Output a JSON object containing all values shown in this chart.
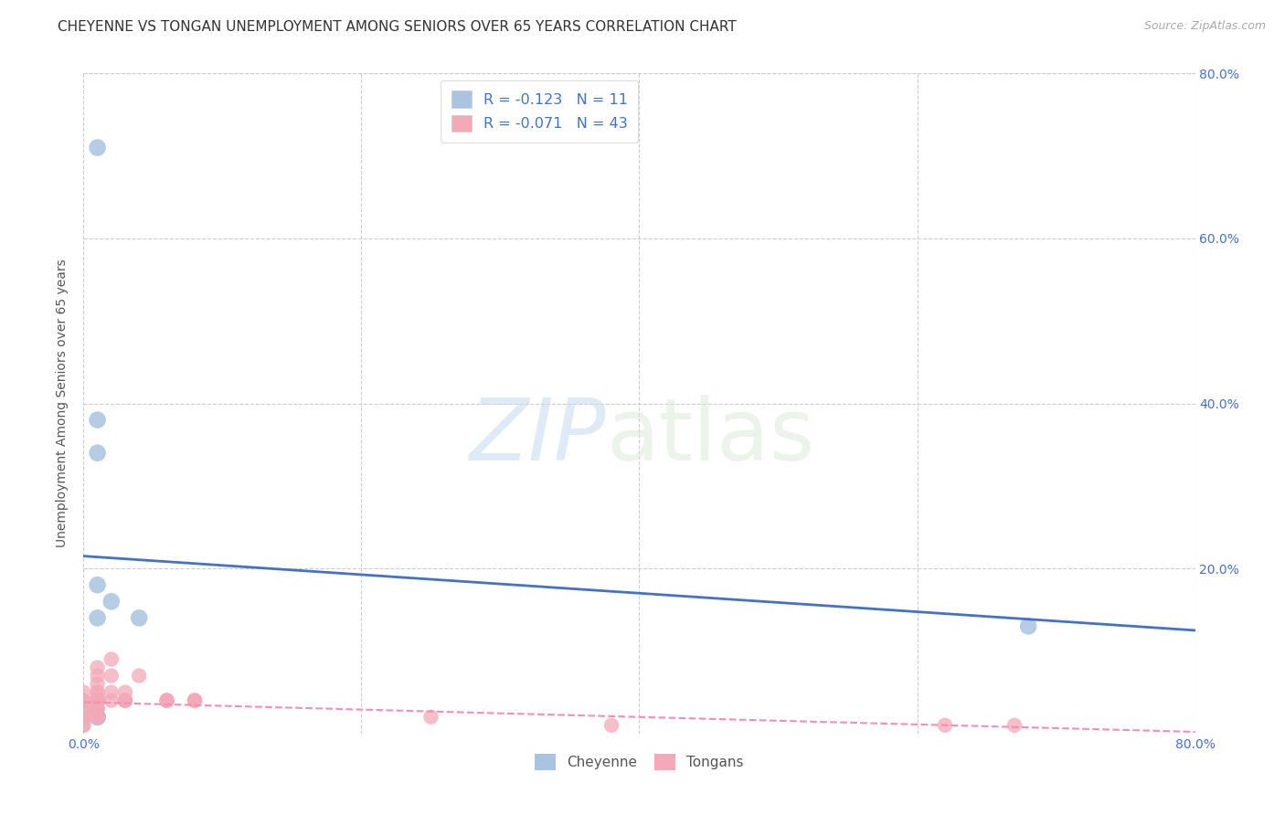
{
  "title": "CHEYENNE VS TONGAN UNEMPLOYMENT AMONG SENIORS OVER 65 YEARS CORRELATION CHART",
  "source": "Source: ZipAtlas.com",
  "ylabel": "Unemployment Among Seniors over 65 years",
  "xlim": [
    0.0,
    0.8
  ],
  "ylim": [
    0.0,
    0.8
  ],
  "xticks": [
    0.0,
    0.2,
    0.4,
    0.6,
    0.8
  ],
  "yticks": [
    0.2,
    0.4,
    0.6,
    0.8
  ],
  "xticklabels": [
    "0.0%",
    "",
    "",
    "",
    "80.0%"
  ],
  "yticklabels_right": [
    "20.0%",
    "40.0%",
    "60.0%",
    "80.0%"
  ],
  "cheyenne_color": "#a8c4e0",
  "tongan_color": "#f4a8b8",
  "cheyenne_line_color": "#4472c4",
  "tongan_line_color": "#f48fb1",
  "cheyenne_R": -0.123,
  "cheyenne_N": 11,
  "tongan_R": -0.071,
  "tongan_N": 43,
  "cheyenne_scatter_x": [
    0.01,
    0.01,
    0.01,
    0.01,
    0.02,
    0.01,
    0.04,
    0.68,
    0.01,
    0.01,
    0.01
  ],
  "cheyenne_scatter_y": [
    0.71,
    0.38,
    0.34,
    0.18,
    0.16,
    0.14,
    0.14,
    0.13,
    0.04,
    0.02,
    0.02
  ],
  "tongan_scatter_x": [
    0.0,
    0.0,
    0.0,
    0.0,
    0.0,
    0.0,
    0.0,
    0.0,
    0.0,
    0.0,
    0.0,
    0.01,
    0.01,
    0.01,
    0.01,
    0.01,
    0.01,
    0.01,
    0.01,
    0.01,
    0.01,
    0.01,
    0.01,
    0.01,
    0.02,
    0.02,
    0.02,
    0.02,
    0.03,
    0.03,
    0.03,
    0.03,
    0.04,
    0.06,
    0.06,
    0.06,
    0.08,
    0.08,
    0.08,
    0.25,
    0.38,
    0.62,
    0.67
  ],
  "tongan_scatter_y": [
    0.05,
    0.04,
    0.04,
    0.03,
    0.03,
    0.03,
    0.02,
    0.02,
    0.02,
    0.01,
    0.01,
    0.08,
    0.07,
    0.06,
    0.05,
    0.05,
    0.04,
    0.04,
    0.04,
    0.03,
    0.03,
    0.03,
    0.02,
    0.02,
    0.09,
    0.07,
    0.05,
    0.04,
    0.05,
    0.04,
    0.04,
    0.04,
    0.07,
    0.04,
    0.04,
    0.04,
    0.04,
    0.04,
    0.04,
    0.02,
    0.01,
    0.01,
    0.01
  ],
  "cheyenne_trend_x": [
    0.0,
    0.8
  ],
  "cheyenne_trend_y": [
    0.215,
    0.125
  ],
  "tongan_trend_x": [
    0.0,
    0.8
  ],
  "tongan_trend_y": [
    0.038,
    0.002
  ],
  "watermark_zip": "ZIP",
  "watermark_atlas": "atlas",
  "background_color": "#ffffff",
  "grid_color": "#cccccc",
  "title_fontsize": 11,
  "label_fontsize": 10,
  "tick_fontsize": 10,
  "legend_label_cheyenne": "Cheyenne",
  "legend_label_tongan": "Tongans"
}
